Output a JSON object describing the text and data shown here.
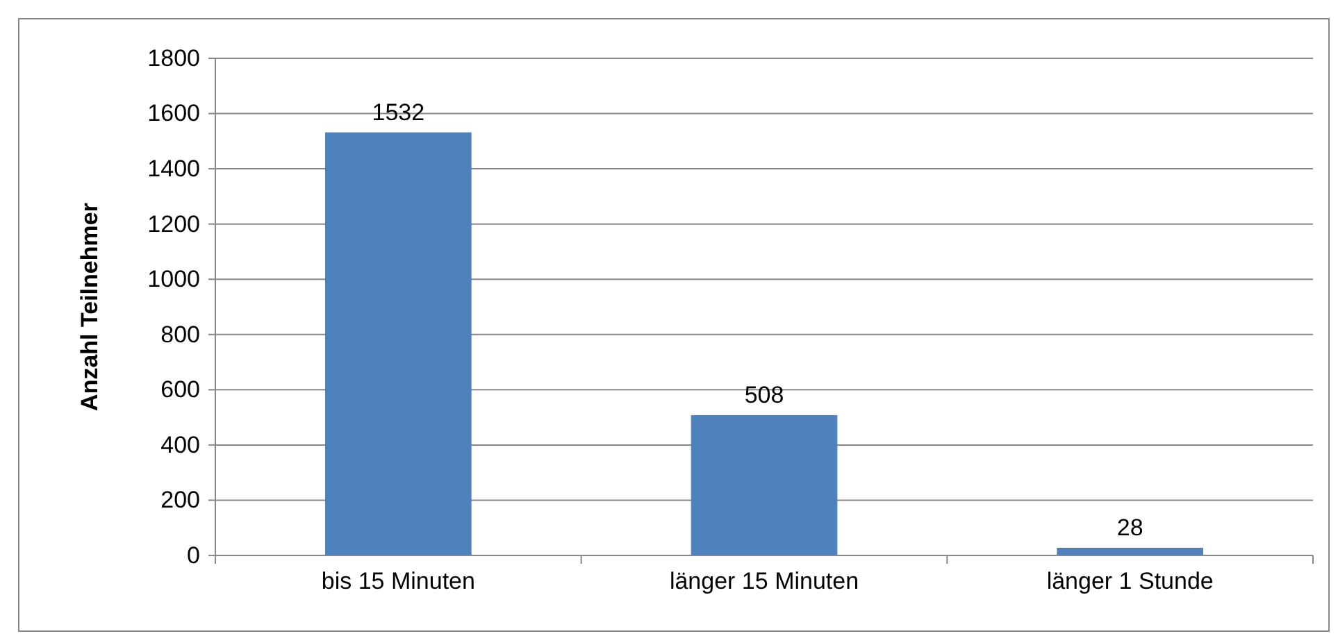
{
  "chart_data": {
    "type": "bar",
    "ylabel": "Anzahl Teilnehmer",
    "categories": [
      "bis 15 Minuten",
      "länger 15 Minuten",
      "länger 1 Stunde"
    ],
    "values": [
      1532,
      508,
      28
    ],
    "color": "#4f81bd",
    "ylim": [
      0,
      1800
    ],
    "yticks": [
      0,
      200,
      400,
      600,
      800,
      1000,
      1200,
      1400,
      1600,
      1800
    ],
    "grid": "y",
    "data_labels": true
  }
}
